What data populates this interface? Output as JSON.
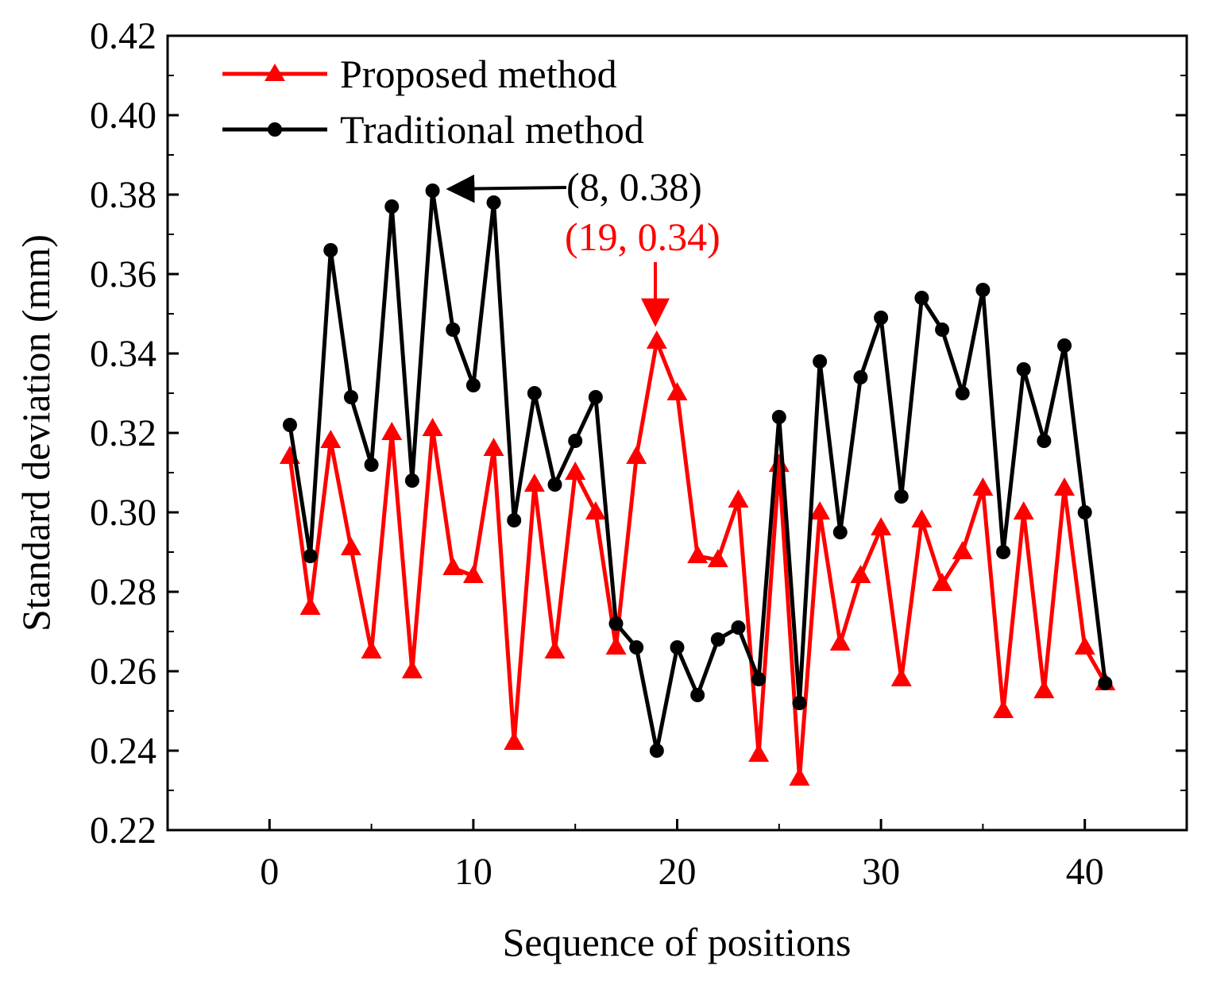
{
  "chart_data": {
    "type": "line",
    "title": "",
    "xlabel": "Sequence of positions",
    "ylabel": "Standard deviation (mm)",
    "xlim": [
      -5,
      45
    ],
    "ylim": [
      0.22,
      0.42
    ],
    "xticks": [
      0,
      10,
      20,
      30,
      40
    ],
    "xtick_labels": [
      "0",
      "10",
      "20",
      "30",
      "40"
    ],
    "yticks": [
      0.22,
      0.24,
      0.26,
      0.28,
      0.3,
      0.32,
      0.34,
      0.36,
      0.38,
      0.4,
      0.42
    ],
    "ytick_labels": [
      "0.22",
      "0.24",
      "0.26",
      "0.28",
      "0.30",
      "0.32",
      "0.34",
      "0.36",
      "0.38",
      "0.40",
      "0.42"
    ],
    "grid": false,
    "legend_position": "top-left",
    "x": [
      1,
      2,
      3,
      4,
      5,
      6,
      7,
      8,
      9,
      10,
      11,
      12,
      13,
      14,
      15,
      16,
      17,
      18,
      19,
      20,
      21,
      22,
      23,
      24,
      25,
      26,
      27,
      28,
      29,
      30,
      31,
      32,
      33,
      34,
      35,
      36,
      37,
      38,
      39,
      40,
      41
    ],
    "series": [
      {
        "name": "Proposed method",
        "color": "#ff0000",
        "marker": "triangle",
        "values": [
          0.314,
          0.276,
          0.318,
          0.291,
          0.265,
          0.32,
          0.26,
          0.321,
          0.286,
          0.284,
          0.316,
          0.242,
          0.307,
          0.265,
          0.31,
          0.3,
          0.266,
          0.314,
          0.343,
          0.33,
          0.289,
          0.288,
          0.303,
          0.239,
          0.312,
          0.233,
          0.3,
          0.267,
          0.284,
          0.296,
          0.258,
          0.298,
          0.282,
          0.29,
          0.306,
          0.25,
          0.3,
          0.255,
          0.306,
          0.266,
          0.257
        ]
      },
      {
        "name": "Traditional method",
        "color": "#000000",
        "marker": "circle",
        "values": [
          0.322,
          0.289,
          0.366,
          0.329,
          0.312,
          0.377,
          0.308,
          0.381,
          0.346,
          0.332,
          0.378,
          0.298,
          0.33,
          0.307,
          0.318,
          0.329,
          0.272,
          0.266,
          0.24,
          0.266,
          0.254,
          0.268,
          0.271,
          0.258,
          0.324,
          0.252,
          0.338,
          0.295,
          0.334,
          0.349,
          0.304,
          0.354,
          0.346,
          0.33,
          0.356,
          0.29,
          0.336,
          0.318,
          0.342,
          0.3,
          0.257
        ]
      }
    ],
    "annotations": [
      {
        "text": "(8, 0.38)",
        "x": 8,
        "y": 0.381,
        "series": "Traditional method",
        "color": "#000000",
        "arrow": "from-right"
      },
      {
        "text": "(19, 0.34)",
        "x": 19,
        "y": 0.343,
        "series": "Proposed method",
        "color": "#ff0000",
        "arrow": "from-above"
      }
    ]
  }
}
